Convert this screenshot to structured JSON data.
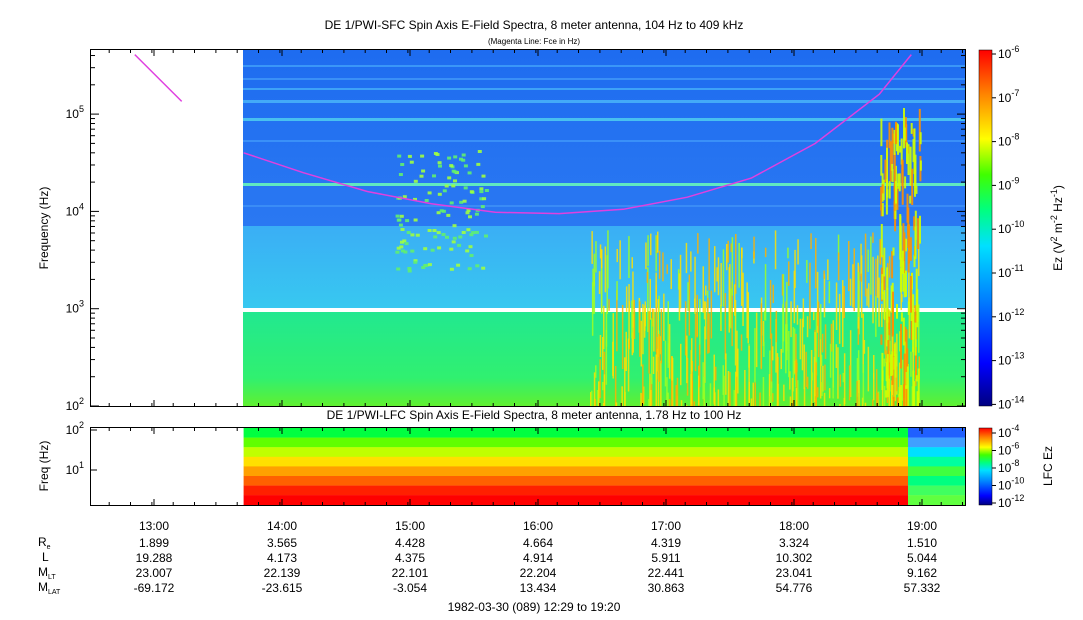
{
  "chart_data": [
    {
      "type": "heatmap",
      "title": "DE 1/PWI-SFC  Spin Axis E-Field Spectra, 8 meter antenna, 104 Hz to 409 kHz",
      "subtitle": "(Magenta Line: Fce in Hz)",
      "ylabel": "Frequency (Hz)",
      "yscale": "log",
      "ylim": [
        100,
        409000
      ],
      "yticks": [
        "10^2",
        "10^3",
        "10^4",
        "10^5"
      ],
      "colorbar": {
        "label": "Ez (V^2 m^-2 Hz^-1)",
        "scale": "log",
        "range": [
          1e-14,
          1e-06
        ],
        "ticks": [
          "10^-6",
          "10^-7",
          "10^-8",
          "10^-9",
          "10^-10",
          "10^-11",
          "10^-12",
          "10^-13",
          "10^-14"
        ]
      },
      "data_start_time": "13:42",
      "data_gap_frequency_hz": 1000,
      "fce_line": {
        "color": "#e040e0",
        "segments": [
          {
            "times": [
              "12:51",
              "13:13"
            ],
            "freq_hz": [
              409000,
              135000
            ]
          },
          {
            "times": [
              "13:42",
              "14:10",
              "14:40",
              "15:10",
              "15:40",
              "16:10",
              "16:40",
              "17:10",
              "17:40",
              "18:10",
              "18:40",
              "18:55"
            ],
            "freq_hz": [
              40000,
              25000,
              16000,
              12000,
              9800,
              9500,
              10500,
              14000,
              22000,
              50000,
              160000,
              409000
            ]
          }
        ]
      }
    },
    {
      "type": "heatmap",
      "title": "DE 1/PWI-LFC  Spin Axis E-Field Spectra, 8 meter antenna, 1.78 Hz to 100 Hz",
      "ylabel": "Freq (Hz)",
      "yscale": "log",
      "ylim": [
        1.78,
        100
      ],
      "yticks": [
        "10^1",
        "10^2"
      ],
      "colorbar": {
        "label": "LFC Ez",
        "scale": "log",
        "range": [
          1e-12,
          0.0001
        ],
        "ticks": [
          "10^-4",
          "10^-6",
          "10^-8",
          "10^-10",
          "10^-12"
        ]
      }
    }
  ],
  "xaxis": {
    "ticks": [
      "13:00",
      "14:00",
      "15:00",
      "16:00",
      "17:00",
      "18:00",
      "19:00"
    ],
    "range": [
      "12:29",
      "19:20"
    ]
  },
  "ephemeris": {
    "row_labels": [
      {
        "main": "R",
        "sub": "e"
      },
      {
        "main": "L",
        "sub": ""
      },
      {
        "main": "M",
        "sub": "LT"
      },
      {
        "main": "M",
        "sub": "LAT"
      }
    ],
    "rows": [
      [
        "1.899",
        "3.565",
        "4.428",
        "4.664",
        "4.319",
        "3.324",
        "1.510"
      ],
      [
        "19.288",
        "4.173",
        "4.375",
        "4.914",
        "5.911",
        "10.302",
        "5.044"
      ],
      [
        "23.007",
        "22.139",
        "22.101",
        "22.204",
        "22.441",
        "23.041",
        "9.162"
      ],
      [
        "-69.172",
        "-23.615",
        "-3.054",
        "13.434",
        "30.863",
        "54.776",
        "57.332"
      ]
    ]
  },
  "footer": "1982-03-30 (089) 12:29 to 19:20"
}
